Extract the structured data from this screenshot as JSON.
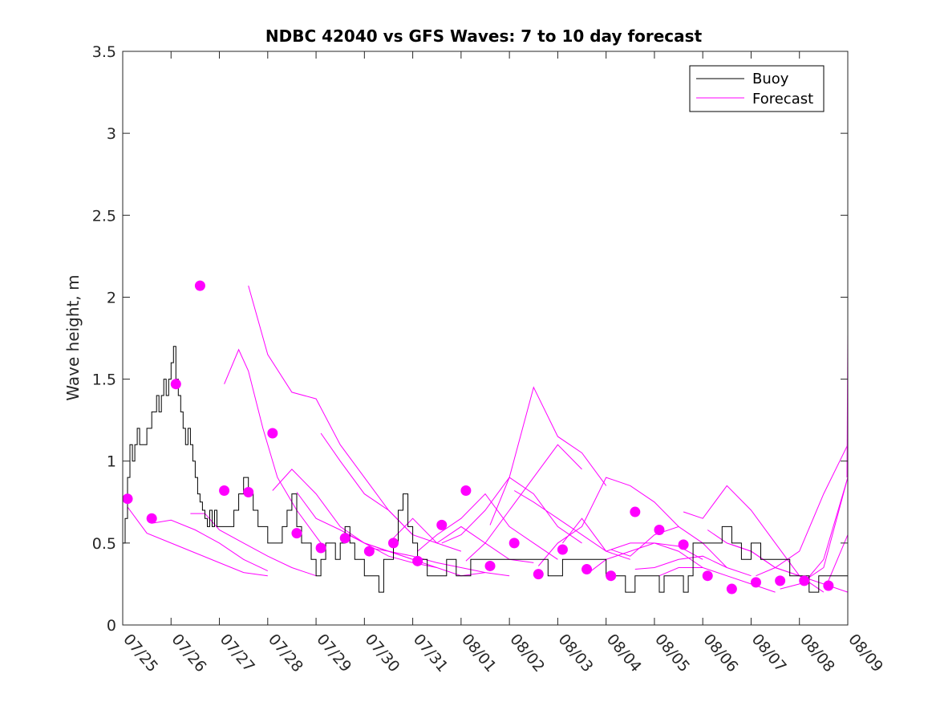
{
  "chart_data": {
    "type": "line",
    "title": "NDBC 42040 vs GFS Waves: 7 to 10 day forecast",
    "xlabel": "",
    "ylabel": "Wave height, m",
    "xlim": [
      0,
      15
    ],
    "ylim": [
      0,
      3.5
    ],
    "x_ticks": [
      "07/25",
      "07/26",
      "07/27",
      "07/28",
      "07/29",
      "07/30",
      "07/31",
      "08/01",
      "08/02",
      "08/03",
      "08/04",
      "08/05",
      "08/06",
      "08/07",
      "08/08",
      "08/09"
    ],
    "y_ticks": [
      "0",
      "0.5",
      "1",
      "1.5",
      "2",
      "2.5",
      "3",
      "3.5"
    ],
    "grid": false,
    "legend_position": "top-right",
    "legend": [
      {
        "label": "Buoy",
        "color": "#000000"
      },
      {
        "label": "Forecast",
        "color": "#ff00ff"
      }
    ],
    "buoy": {
      "name": "Buoy",
      "color": "#000000",
      "x": [
        0.0,
        0.05,
        0.1,
        0.15,
        0.2,
        0.25,
        0.3,
        0.35,
        0.4,
        0.5,
        0.6,
        0.7,
        0.75,
        0.8,
        0.85,
        0.9,
        0.95,
        1.0,
        1.05,
        1.1,
        1.15,
        1.2,
        1.25,
        1.3,
        1.35,
        1.4,
        1.45,
        1.5,
        1.55,
        1.6,
        1.65,
        1.7,
        1.75,
        1.8,
        1.85,
        1.9,
        1.95,
        2.0,
        2.05,
        2.1,
        2.15,
        2.2,
        2.3,
        2.4,
        2.5,
        2.6,
        2.7,
        2.8,
        2.9,
        3.0,
        3.1,
        3.2,
        3.3,
        3.4,
        3.5,
        3.6,
        3.7,
        3.8,
        3.9,
        4.0,
        4.1,
        4.2,
        4.3,
        4.4,
        4.5,
        4.6,
        4.7,
        4.8,
        4.9,
        5.0,
        5.1,
        5.2,
        5.3,
        5.4,
        5.5,
        5.6,
        5.7,
        5.8,
        5.9,
        6.0,
        6.1,
        6.2,
        6.3,
        6.4,
        6.5,
        6.6,
        6.7,
        6.8,
        6.9,
        7.0,
        7.2,
        7.4,
        7.6,
        7.8,
        8.0,
        8.2,
        8.4,
        8.6,
        8.8,
        9.0,
        9.1,
        9.2,
        9.3,
        9.4,
        9.5,
        9.6,
        9.7,
        9.8,
        9.9,
        10.0,
        10.2,
        10.4,
        10.6,
        10.8,
        11.0,
        11.1,
        11.2,
        11.3,
        11.4,
        11.5,
        11.6,
        11.7,
        11.8,
        11.9,
        12.0,
        12.2,
        12.4,
        12.6,
        12.8,
        13.0,
        13.2,
        13.4,
        13.6,
        13.8,
        14.0,
        14.2,
        14.4,
        14.6,
        14.8,
        15.0
      ],
      "values": [
        0.5,
        0.65,
        0.9,
        1.1,
        1.0,
        1.1,
        1.2,
        1.1,
        1.1,
        1.2,
        1.3,
        1.4,
        1.3,
        1.4,
        1.5,
        1.4,
        1.5,
        1.6,
        1.7,
        1.5,
        1.4,
        1.3,
        1.2,
        1.1,
        1.2,
        1.1,
        1.0,
        0.9,
        0.8,
        0.75,
        0.7,
        0.65,
        0.6,
        0.7,
        0.6,
        0.7,
        0.6,
        0.6,
        0.6,
        0.6,
        0.6,
        0.6,
        0.7,
        0.8,
        0.9,
        0.8,
        0.7,
        0.6,
        0.6,
        0.5,
        0.5,
        0.5,
        0.6,
        0.7,
        0.8,
        0.6,
        0.5,
        0.5,
        0.4,
        0.3,
        0.4,
        0.5,
        0.5,
        0.4,
        0.5,
        0.6,
        0.5,
        0.4,
        0.4,
        0.3,
        0.3,
        0.3,
        0.2,
        0.4,
        0.4,
        0.5,
        0.7,
        0.8,
        0.6,
        0.5,
        0.4,
        0.4,
        0.3,
        0.3,
        0.3,
        0.3,
        0.4,
        0.4,
        0.3,
        0.3,
        0.4,
        0.4,
        0.4,
        0.4,
        0.4,
        0.4,
        0.4,
        0.4,
        0.3,
        0.3,
        0.4,
        0.4,
        0.4,
        0.4,
        0.4,
        0.4,
        0.4,
        0.4,
        0.4,
        0.3,
        0.3,
        0.2,
        0.3,
        0.3,
        0.3,
        0.2,
        0.3,
        0.3,
        0.3,
        0.3,
        0.2,
        0.3,
        0.5,
        0.5,
        0.5,
        0.5,
        0.6,
        0.5,
        0.4,
        0.5,
        0.4,
        0.4,
        0.4,
        0.3,
        0.3,
        0.2,
        0.3,
        0.3,
        0.3,
        0.3
      ]
    },
    "forecast_series": [
      {
        "x": [
          0.1,
          0.5,
          1.0,
          1.5,
          2.0,
          2.5,
          3.0
        ],
        "values": [
          0.72,
          0.56,
          0.5,
          0.44,
          0.38,
          0.32,
          0.3
        ]
      },
      {
        "x": [
          0.6,
          1.0,
          1.5,
          2.0,
          2.5,
          3.0
        ],
        "values": [
          0.62,
          0.64,
          0.58,
          0.5,
          0.4,
          0.33
        ]
      },
      {
        "x": [
          1.4,
          1.7,
          2.0,
          2.5,
          3.0,
          3.5,
          4.0
        ],
        "values": [
          0.68,
          0.68,
          0.58,
          0.5,
          0.42,
          0.35,
          0.3
        ]
      },
      {
        "x": [
          2.1,
          2.4,
          2.6,
          2.9,
          3.2,
          3.6,
          4.1
        ],
        "values": [
          1.47,
          1.68,
          1.55,
          1.2,
          0.9,
          0.7,
          0.5
        ]
      },
      {
        "x": [
          2.6,
          3.0,
          3.5,
          4.0,
          4.5,
          5.0,
          5.5,
          6.0
        ],
        "values": [
          2.07,
          1.65,
          1.42,
          1.38,
          1.1,
          0.9,
          0.7,
          0.55
        ]
      },
      {
        "x": [
          3.1,
          3.5,
          4.0,
          4.5,
          5.0,
          5.5,
          6.0
        ],
        "values": [
          0.82,
          0.95,
          0.8,
          0.6,
          0.5,
          0.45,
          0.4
        ]
      },
      {
        "x": [
          3.6,
          4.0,
          4.5,
          5.0,
          5.5,
          6.0,
          6.5
        ],
        "values": [
          0.81,
          0.65,
          0.58,
          0.5,
          0.42,
          0.38,
          0.35
        ]
      },
      {
        "x": [
          4.1,
          4.5,
          5.0,
          5.5,
          6.0,
          6.5,
          7.0
        ],
        "values": [
          1.17,
          1.0,
          0.8,
          0.7,
          0.55,
          0.5,
          0.45
        ]
      },
      {
        "x": [
          4.6,
          5.0,
          5.5,
          6.0,
          6.5,
          7.0,
          7.5
        ],
        "values": [
          0.56,
          0.5,
          0.45,
          0.4,
          0.35,
          0.3,
          0.32
        ]
      },
      {
        "x": [
          5.1,
          5.5,
          6.0,
          6.5,
          7.0,
          7.5,
          8.0
        ],
        "values": [
          0.47,
          0.45,
          0.42,
          0.38,
          0.35,
          0.32,
          0.3
        ]
      },
      {
        "x": [
          5.6,
          6.0,
          6.5,
          7.0,
          7.5,
          8.0,
          8.5
        ],
        "values": [
          0.53,
          0.65,
          0.5,
          0.6,
          0.5,
          0.4,
          0.38
        ]
      },
      {
        "x": [
          6.1,
          6.5,
          7.0,
          7.5,
          8.0,
          8.5,
          9.0
        ],
        "values": [
          0.45,
          0.55,
          0.65,
          0.8,
          0.6,
          0.5,
          0.4
        ]
      },
      {
        "x": [
          6.6,
          7.0,
          7.5,
          8.0,
          8.5,
          9.0,
          9.5
        ],
        "values": [
          0.5,
          0.55,
          0.7,
          0.9,
          0.8,
          0.6,
          0.5
        ]
      },
      {
        "x": [
          7.1,
          7.5,
          8.0,
          8.5,
          9.0,
          9.5
        ],
        "values": [
          0.39,
          0.5,
          0.7,
          0.9,
          1.1,
          0.95
        ]
      },
      {
        "x": [
          7.6,
          8.0,
          8.5,
          9.0,
          9.5,
          10.0
        ],
        "values": [
          0.61,
          0.9,
          1.45,
          1.15,
          1.05,
          0.85
        ]
      },
      {
        "x": [
          8.1,
          8.5,
          9.0,
          9.5,
          10.0,
          10.5
        ],
        "values": [
          0.82,
          0.75,
          0.65,
          0.55,
          0.45,
          0.4
        ]
      },
      {
        "x": [
          8.6,
          9.0,
          9.5,
          10.0,
          10.5,
          11.0,
          11.5
        ],
        "values": [
          0.36,
          0.5,
          0.6,
          0.9,
          0.85,
          0.75,
          0.6
        ]
      },
      {
        "x": [
          9.1,
          9.5,
          10.0,
          10.5,
          11.0,
          11.5,
          12.0
        ],
        "values": [
          0.5,
          0.65,
          0.45,
          0.5,
          0.5,
          0.45,
          0.35
        ]
      },
      {
        "x": [
          9.6,
          10.0,
          10.5,
          11.0,
          11.5,
          12.0
        ],
        "values": [
          0.31,
          0.4,
          0.45,
          0.5,
          0.48,
          0.4
        ]
      },
      {
        "x": [
          10.1,
          10.5,
          11.0,
          11.5,
          12.0,
          12.5
        ],
        "values": [
          0.46,
          0.42,
          0.55,
          0.6,
          0.5,
          0.35
        ]
      },
      {
        "x": [
          10.6,
          11.0,
          11.5,
          12.0,
          12.5,
          13.0
        ],
        "values": [
          0.34,
          0.35,
          0.4,
          0.42,
          0.35,
          0.3
        ]
      },
      {
        "x": [
          11.1,
          11.5,
          12.0,
          12.5,
          13.0,
          13.5
        ],
        "values": [
          0.3,
          0.35,
          0.35,
          0.3,
          0.25,
          0.2
        ]
      },
      {
        "x": [
          11.6,
          12.0,
          12.5,
          13.0,
          13.5,
          14.0
        ],
        "values": [
          0.69,
          0.65,
          0.85,
          0.7,
          0.5,
          0.3
        ]
      },
      {
        "x": [
          12.1,
          12.5,
          13.0,
          13.5,
          14.0,
          14.5
        ],
        "values": [
          0.58,
          0.5,
          0.45,
          0.35,
          0.3,
          0.2
        ]
      },
      {
        "x": [
          12.6,
          13.0,
          13.5,
          14.0,
          14.5,
          15.0
        ],
        "values": [
          0.49,
          0.45,
          0.35,
          0.3,
          0.25,
          0.2
        ]
      },
      {
        "x": [
          13.1,
          13.5,
          14.0,
          14.5,
          15.0
        ],
        "values": [
          0.3,
          0.35,
          0.45,
          0.8,
          1.1
        ]
      },
      {
        "x": [
          13.6,
          14.0,
          14.5,
          15.0
        ],
        "values": [
          0.22,
          0.25,
          0.35,
          0.9
        ]
      },
      {
        "x": [
          14.1,
          14.5,
          15.0
        ],
        "values": [
          0.26,
          0.4,
          0.9
        ]
      },
      {
        "x": [
          14.6,
          15.0
        ],
        "values": [
          0.27,
          0.55
        ]
      },
      {
        "x": [
          15.0
        ],
        "values": [
          1.78
        ]
      }
    ],
    "forecast_markers": {
      "x": [
        0.1,
        0.6,
        1.1,
        1.6,
        2.1,
        2.6,
        3.1,
        3.6,
        4.1,
        4.6,
        5.1,
        5.6,
        6.1,
        6.6,
        7.1,
        7.6,
        8.1,
        8.6,
        9.1,
        9.6,
        10.1,
        10.6,
        11.1,
        11.6,
        12.1,
        12.6,
        13.1,
        13.6,
        14.1,
        14.6
      ],
      "values": [
        0.77,
        0.65,
        1.47,
        2.07,
        0.82,
        0.81,
        1.17,
        0.56,
        0.47,
        0.53,
        0.45,
        0.5,
        0.39,
        0.61,
        0.82,
        0.36,
        0.5,
        0.31,
        0.46,
        0.34,
        0.3,
        0.69,
        0.58,
        0.49,
        0.3,
        0.22,
        0.26,
        0.27,
        0.27,
        0.24
      ]
    }
  }
}
